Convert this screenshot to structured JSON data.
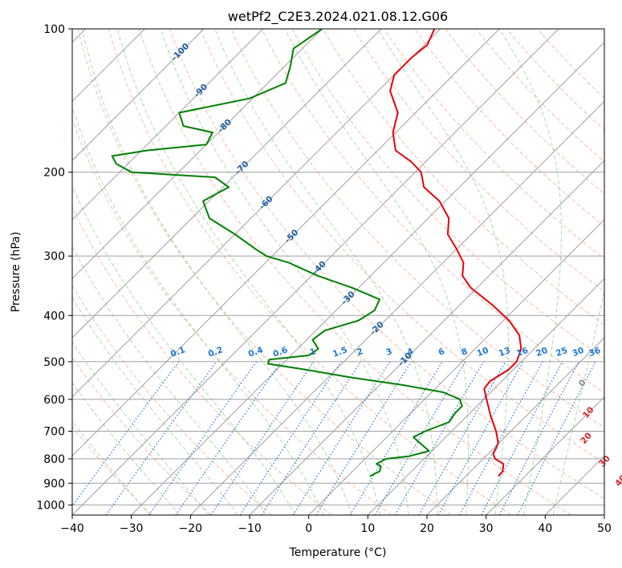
{
  "chart_data": {
    "type": "line",
    "title": "wetPf2_C2E3.2024.021.08.12.G06",
    "xlabel": "Temperature (°C)",
    "ylabel": "Pressure (hPa)",
    "xlim": [
      -40,
      50
    ],
    "ylim": [
      1050,
      100
    ],
    "y_scale": "log",
    "grid": true,
    "x_ticks": [
      -40,
      -30,
      -20,
      -10,
      0,
      10,
      20,
      30,
      40,
      50
    ],
    "y_ticks": [
      100,
      200,
      300,
      400,
      500,
      600,
      700,
      800,
      900,
      1000
    ],
    "skew_degrees": 45,
    "colors": {
      "temperature": "#e8000b",
      "dewpoint": "#008000",
      "isotherm": "#a0a0a0",
      "isobar": "#a0a0a0",
      "dry_adiabat": "#f4a582",
      "moist_adiabat": "#98d098",
      "mixing_ratio": "#1f77d4",
      "temp_labels": "#1f5fa0",
      "theta_labels": "#d62728"
    },
    "series": [
      {
        "key": "temperature",
        "pressure": [
          870,
          850,
          820,
          800,
          780,
          760,
          740,
          700,
          650,
          600,
          570,
          550,
          520,
          500,
          470,
          440,
          410,
          380,
          350,
          330,
          310,
          290,
          270,
          250,
          230,
          215,
          200,
          190,
          180,
          165,
          150,
          135,
          125,
          115,
          108,
          100
        ],
        "values": [
          25.5,
          25.4,
          24.3,
          22.0,
          20.8,
          20.4,
          19.8,
          17.5,
          14.0,
          10.5,
          8.3,
          8.0,
          9.2,
          9.2,
          7.8,
          5.2,
          1.0,
          -4.5,
          -11.0,
          -14.5,
          -16.5,
          -20.0,
          -24.0,
          -26.5,
          -31.0,
          -36.0,
          -39.0,
          -42.5,
          -47.0,
          -50.5,
          -53.0,
          -58.0,
          -60.0,
          -60.0,
          -59.5,
          -61.0
        ]
      },
      {
        "key": "dewpoint",
        "pressure": [
          870,
          850,
          830,
          820,
          800,
          790,
          770,
          740,
          720,
          700,
          670,
          640,
          620,
          600,
          580,
          560,
          540,
          520,
          505,
          495,
          485,
          470,
          450,
          430,
          410,
          390,
          370,
          350,
          330,
          310,
          300,
          290,
          270,
          250,
          230,
          215,
          205,
          200,
          192,
          185,
          180,
          175,
          165,
          160,
          150,
          140,
          130,
          120,
          110,
          100
        ],
        "values": [
          3.8,
          4.6,
          4.0,
          2.8,
          3.6,
          7.0,
          9.5,
          6.5,
          4.5,
          5.5,
          8.0,
          7.5,
          7.5,
          6.0,
          2.0,
          -6.0,
          -16.0,
          -25.0,
          -32.5,
          -33.0,
          -27.0,
          -26.5,
          -29.0,
          -28.5,
          -24.5,
          -23.5,
          -24.5,
          -31.0,
          -39.0,
          -46.0,
          -51.0,
          -54.0,
          -60.0,
          -67.0,
          -71.0,
          -69.0,
          -73.0,
          -88.0,
          -92.0,
          -94.0,
          -89.0,
          -80.0,
          -81.0,
          -87.0,
          -90.0,
          -80.5,
          -77.0,
          -79.0,
          -81.5,
          -80.0
        ]
      }
    ],
    "temp_labels": [
      "-100",
      "-90",
      "-80",
      "-70",
      "-60",
      "-50",
      "-40",
      "-30",
      "-20",
      "-10"
    ],
    "mixing_ratio_labels": [
      "0.1",
      "0.2",
      "0.4",
      "0.6",
      "1",
      "1.5",
      "2",
      "3",
      "4",
      "6",
      "8",
      "10",
      "13",
      "16",
      "20",
      "25",
      "30",
      "36"
    ],
    "theta_labels": [
      "0",
      "10",
      "20",
      "30",
      "40"
    ]
  }
}
